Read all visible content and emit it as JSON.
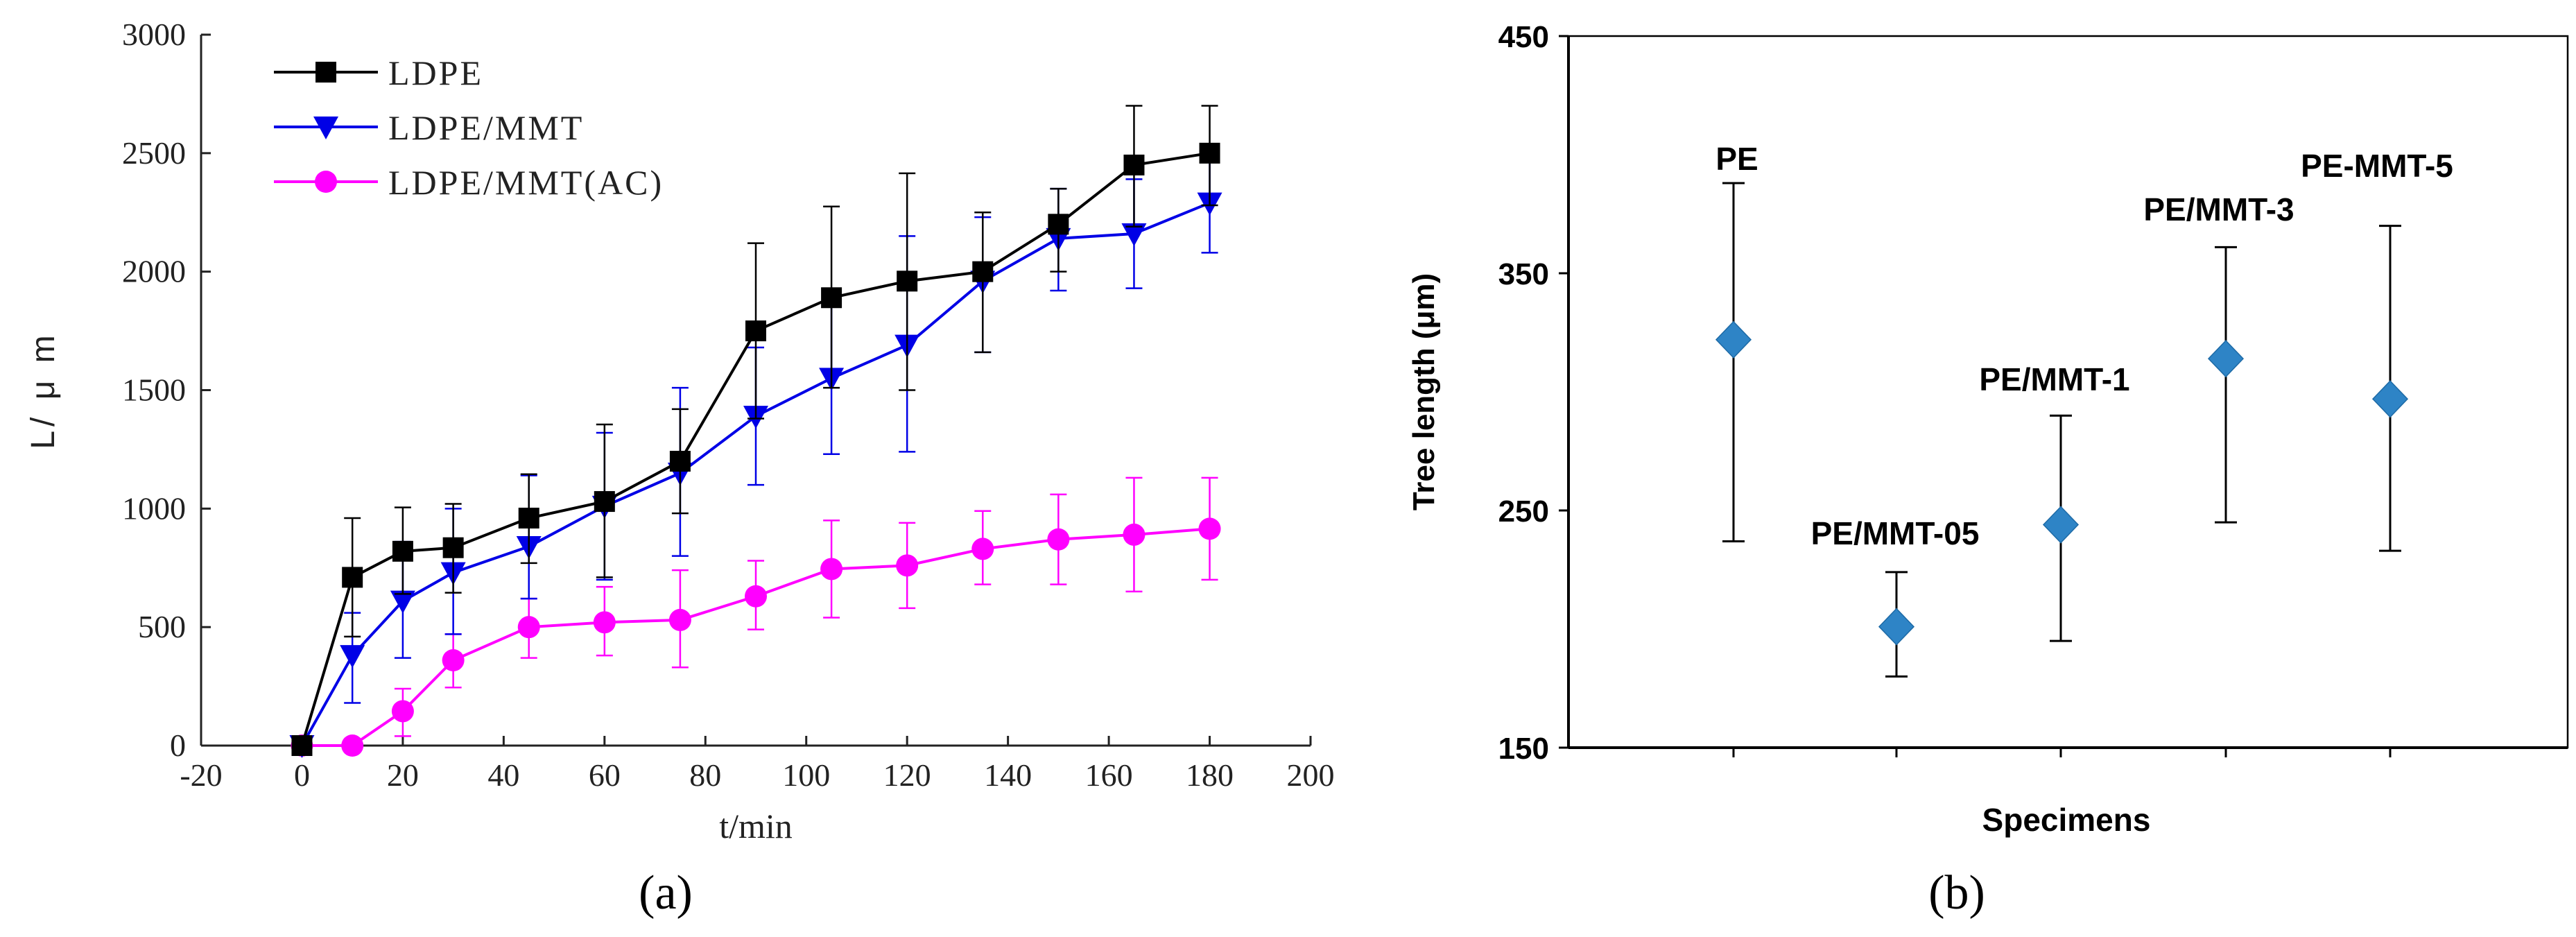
{
  "chart_data": [
    {
      "type": "line",
      "panel_label": "(a)",
      "xlabel": "t/min",
      "ylabel": "L/ μ m",
      "xlim": [
        -20,
        200
      ],
      "ylim": [
        0,
        3000
      ],
      "xticks": [
        -20,
        0,
        20,
        40,
        60,
        80,
        100,
        120,
        140,
        160,
        180,
        200
      ],
      "yticks": [
        0,
        500,
        1000,
        1500,
        2000,
        2500,
        3000
      ],
      "legend_position": "top-left",
      "series": [
        {
          "name": "LDPE",
          "color": "#000000",
          "marker": "square",
          "x": [
            0,
            10,
            20,
            30,
            45,
            60,
            75,
            90,
            105,
            120,
            135,
            150,
            165,
            180
          ],
          "y": [
            0,
            710,
            820,
            835,
            960,
            1030,
            1200,
            1750,
            1890,
            1960,
            2000,
            2200,
            2450,
            2500
          ],
          "err_low": [
            0,
            460,
            640,
            645,
            770,
            710,
            980,
            1380,
            1510,
            1500,
            1660,
            2000,
            2190,
            2280
          ],
          "err_high": [
            0,
            960,
            1005,
            1020,
            1145,
            1355,
            1420,
            2120,
            2275,
            2415,
            2250,
            2350,
            2700,
            2700
          ]
        },
        {
          "name": "LDPE/MMT",
          "color": "#0000e6",
          "marker": "triangle-down",
          "x": [
            0,
            10,
            20,
            30,
            45,
            60,
            75,
            90,
            105,
            120,
            135,
            150,
            165,
            180
          ],
          "y": [
            0,
            380,
            610,
            730,
            840,
            1010,
            1150,
            1390,
            1550,
            1690,
            1960,
            2140,
            2160,
            2290
          ],
          "err_low": [
            0,
            180,
            370,
            470,
            620,
            700,
            800,
            1100,
            1230,
            1240,
            1660,
            1920,
            1930,
            2080
          ],
          "err_high": [
            0,
            560,
            860,
            1000,
            1140,
            1320,
            1510,
            1680,
            1870,
            2150,
            2230,
            2350,
            2390,
            2500
          ]
        },
        {
          "name": "LDPE/MMT(AC)",
          "color": "#ff00ff",
          "marker": "circle",
          "x": [
            0,
            10,
            20,
            30,
            45,
            60,
            75,
            90,
            105,
            120,
            135,
            150,
            165,
            180
          ],
          "y": [
            0,
            0,
            145,
            360,
            500,
            520,
            530,
            630,
            745,
            760,
            830,
            870,
            890,
            915
          ],
          "err_low": [
            0,
            0,
            40,
            245,
            370,
            380,
            330,
            490,
            540,
            580,
            680,
            680,
            650,
            700
          ],
          "err_high": [
            0,
            0,
            240,
            470,
            620,
            670,
            740,
            780,
            950,
            940,
            990,
            1060,
            1130,
            1130
          ]
        }
      ]
    },
    {
      "type": "scatter",
      "panel_label": "(b)",
      "xlabel": "Specimens",
      "ylabel": "Tree length (μm)",
      "ylim": [
        150,
        450
      ],
      "yticks": [
        150,
        250,
        350,
        450
      ],
      "marker": "diamond",
      "color": "#2e84c6",
      "categories": [
        "PE",
        "PE/MMT-05",
        "PE/MMT-1",
        "PE/MMT-3",
        "PE-MMT-5"
      ],
      "values": [
        322,
        201,
        244,
        314,
        297
      ],
      "err_low": [
        237,
        180,
        195,
        245,
        233
      ],
      "err_high": [
        388,
        224,
        290,
        361,
        370
      ]
    }
  ]
}
